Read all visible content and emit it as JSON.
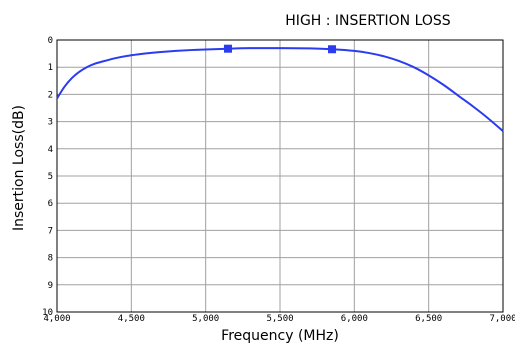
{
  "chart_data": {
    "type": "line",
    "title": "HIGH : INSERTION LOSS",
    "xlabel": "Frequency (MHz)",
    "ylabel": "Insertion Loss(dB)",
    "xlim": [
      4000,
      7000
    ],
    "ylim": [
      0,
      10
    ],
    "y_inverted": true,
    "grid": true,
    "x_ticks": [
      4000,
      4500,
      5000,
      5500,
      6000,
      6500,
      7000
    ],
    "x_tick_labels": [
      "4,000",
      "4,500",
      "5,000",
      "5,500",
      "6,000",
      "6,500",
      "7,000"
    ],
    "y_ticks": [
      0,
      1,
      2,
      3,
      4,
      5,
      6,
      7,
      8,
      9,
      10
    ],
    "y_tick_labels": [
      "0",
      "1",
      "2",
      "3",
      "4",
      "5",
      "6",
      "7",
      "8",
      "9",
      "10"
    ],
    "series": [
      {
        "color": "#2b3bf0",
        "x": [
          4000,
          4050,
          4100,
          4150,
          4200,
          4250,
          4300,
          4400,
          4500,
          4600,
          4700,
          4800,
          4900,
          5000,
          5150,
          5300,
          5500,
          5700,
          5850,
          6000,
          6100,
          6200,
          6300,
          6400,
          6500,
          6600,
          6700,
          6800,
          6900,
          7000
        ],
        "y": [
          2.15,
          1.72,
          1.4,
          1.17,
          1.0,
          0.88,
          0.8,
          0.66,
          0.56,
          0.49,
          0.44,
          0.4,
          0.37,
          0.35,
          0.32,
          0.3,
          0.3,
          0.31,
          0.34,
          0.4,
          0.48,
          0.6,
          0.77,
          1.0,
          1.3,
          1.65,
          2.05,
          2.45,
          2.88,
          3.35
        ]
      }
    ],
    "markers": [
      {
        "x": 5150,
        "y": 0.32
      },
      {
        "x": 5850,
        "y": 0.34
      }
    ]
  }
}
